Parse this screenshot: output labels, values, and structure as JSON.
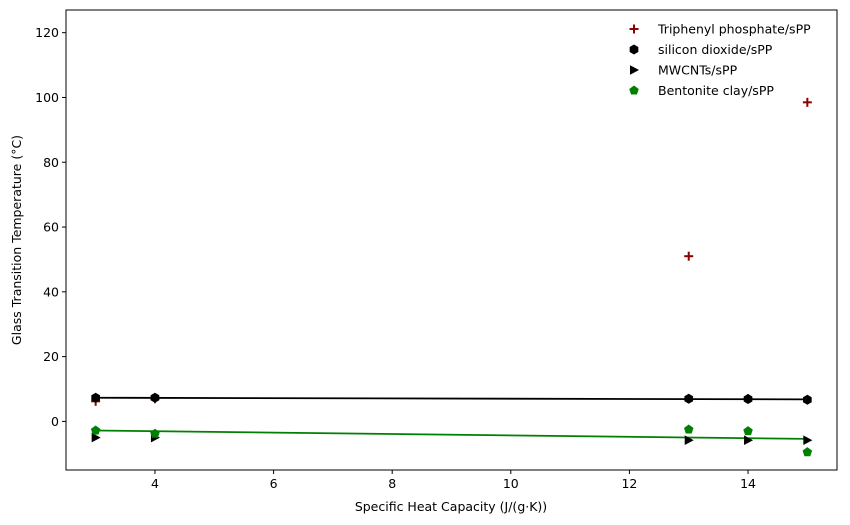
{
  "chart_data": {
    "type": "scatter",
    "title": "",
    "xlabel": "Specific Heat Capacity (J/(g·K))",
    "ylabel": "Glass Transition Temperature (°C)",
    "xlim": [
      2.5,
      15.5
    ],
    "ylim": [
      -15,
      127
    ],
    "xticks": [
      4,
      6,
      8,
      10,
      12,
      14
    ],
    "yticks": [
      0,
      20,
      40,
      60,
      80,
      100,
      120
    ],
    "grid": false,
    "legend_position": "top-right",
    "series": [
      {
        "name": "Triphenyl phosphate/sPP",
        "marker": "plus",
        "color": "#8b0000",
        "x": [
          3,
          4,
          13,
          14,
          15
        ],
        "y": [
          6.2,
          7.0,
          51.0,
          7.0,
          98.5
        ],
        "fit_line": null
      },
      {
        "name": "silicon dioxide/sPP",
        "marker": "hexagon",
        "color": "#000000",
        "x": [
          3,
          4,
          13,
          14,
          15
        ],
        "y": [
          7.3,
          7.3,
          7.0,
          6.9,
          6.7
        ],
        "fit_line": {
          "color": "#000000",
          "x": [
            3,
            15
          ],
          "y": [
            7.3,
            6.8
          ]
        }
      },
      {
        "name": "MWCNTs/sPP",
        "marker": "triangle-right",
        "color": "#000000",
        "x": [
          3,
          4,
          13,
          14,
          15
        ],
        "y": [
          -5.0,
          -5.0,
          -5.8,
          -5.8,
          -5.8
        ],
        "fit_line": null
      },
      {
        "name": "Bentonite clay/sPP",
        "marker": "pentagon",
        "color": "#008000",
        "x": [
          3,
          4,
          13,
          14,
          15
        ],
        "y": [
          -2.8,
          -3.8,
          -2.5,
          -3.0,
          -9.5
        ],
        "fit_line": {
          "color": "#008000",
          "x": [
            3,
            15
          ],
          "y": [
            -2.8,
            -5.4
          ]
        }
      }
    ]
  }
}
